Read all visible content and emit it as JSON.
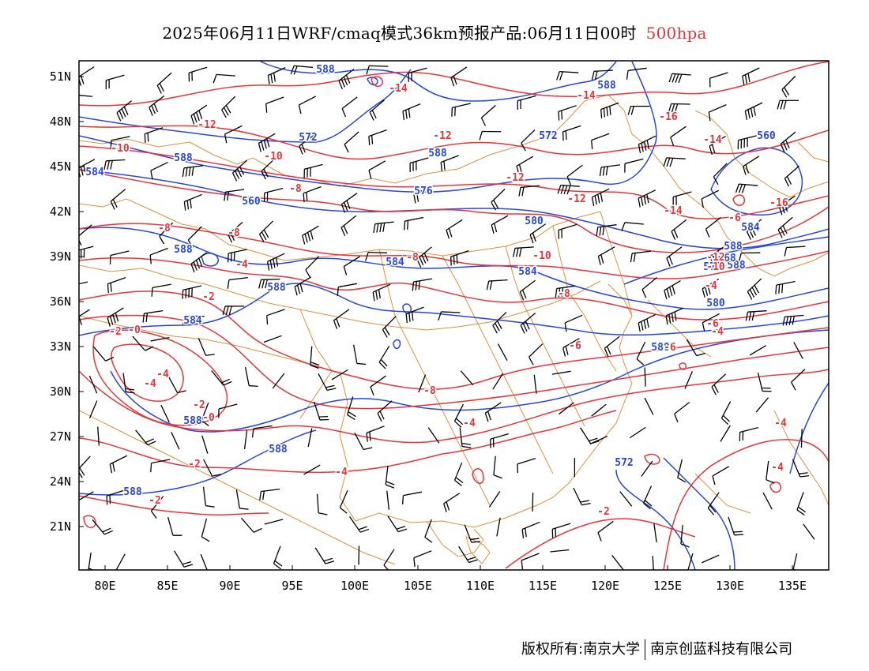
{
  "title": {
    "text": "2025年06月11日WRF/cmaq模式36km预报产品:06月11日00时",
    "level": "500hpa"
  },
  "axes": {
    "lat_labels": [
      "51N",
      "48N",
      "45N",
      "42N",
      "39N",
      "36N",
      "33N",
      "30N",
      "27N",
      "24N",
      "21N"
    ],
    "lon_labels": [
      "80E",
      "85E",
      "90E",
      "95E",
      "100E",
      "105E",
      "110E",
      "115E",
      "120E",
      "125E",
      "130E",
      "135E"
    ]
  },
  "colors": {
    "temperature": "#e8343a",
    "height": "#2846e0",
    "boundary": "#e0913a",
    "wind": "#000000"
  },
  "map": {
    "height_labels": [
      "588",
      "588",
      "572",
      "560",
      "584",
      "588",
      "572",
      "588",
      "576",
      "560",
      "584",
      "580",
      "588",
      "584",
      "584",
      "588",
      "584",
      "588",
      "580",
      "588",
      "572",
      "588",
      "588",
      "588",
      "568",
      "572",
      "588"
    ],
    "temp_labels": [
      "-14",
      "-14",
      "-16",
      "-12",
      "-12",
      "-14",
      "-10",
      "-10",
      "-8",
      "-12",
      "-12",
      "-14",
      "-16",
      "-8",
      "-8",
      "-6",
      "-4",
      "-8",
      "-10",
      "-12",
      "-10",
      "-8",
      "-2",
      "-2",
      "-6",
      "-6",
      "-4",
      "-0",
      "-6",
      "-4",
      "-8",
      "-4",
      "-2",
      "-0",
      "-4",
      "-2",
      "-2",
      "-4",
      "-2",
      "-4",
      "-4",
      "-4"
    ]
  },
  "footer": {
    "left": "版权所有:南京大学",
    "right": "南京创蓝科技有限公司"
  }
}
